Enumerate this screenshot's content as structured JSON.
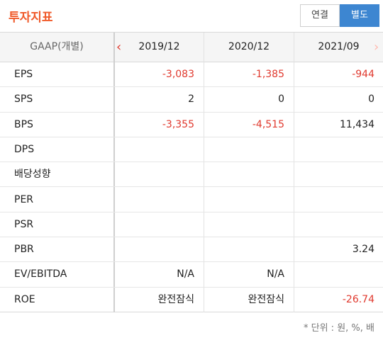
{
  "header": {
    "title": "투자지표",
    "toggle": {
      "consolidated": "연결",
      "separate": "별도"
    }
  },
  "table": {
    "basis_label": "GAAP(개별)",
    "columns": [
      "2019/12",
      "2020/12",
      "2021/09"
    ],
    "rows": [
      {
        "label": "EPS",
        "values": [
          "-3,083",
          "-1,385",
          "-944"
        ]
      },
      {
        "label": "SPS",
        "values": [
          "2",
          "0",
          "0"
        ]
      },
      {
        "label": "BPS",
        "values": [
          "-3,355",
          "-4,515",
          "11,434"
        ]
      },
      {
        "label": "DPS",
        "values": [
          "",
          "",
          ""
        ]
      },
      {
        "label": "배당성향",
        "values": [
          "",
          "",
          ""
        ]
      },
      {
        "label": "PER",
        "values": [
          "",
          "",
          ""
        ]
      },
      {
        "label": "PSR",
        "values": [
          "",
          "",
          ""
        ]
      },
      {
        "label": "PBR",
        "values": [
          "",
          "",
          "3.24"
        ]
      },
      {
        "label": "EV/EBITDA",
        "values": [
          "N/A",
          "N/A",
          ""
        ]
      },
      {
        "label": "ROE",
        "values": [
          "완전잠식",
          "완전잠식",
          "-26.74"
        ]
      }
    ]
  },
  "footer": {
    "unit_note": "* 단위 : 원, %, 배"
  },
  "colors": {
    "accent": "#f05a2a",
    "active_button": "#3d86d1",
    "negative": "#e0392e"
  }
}
